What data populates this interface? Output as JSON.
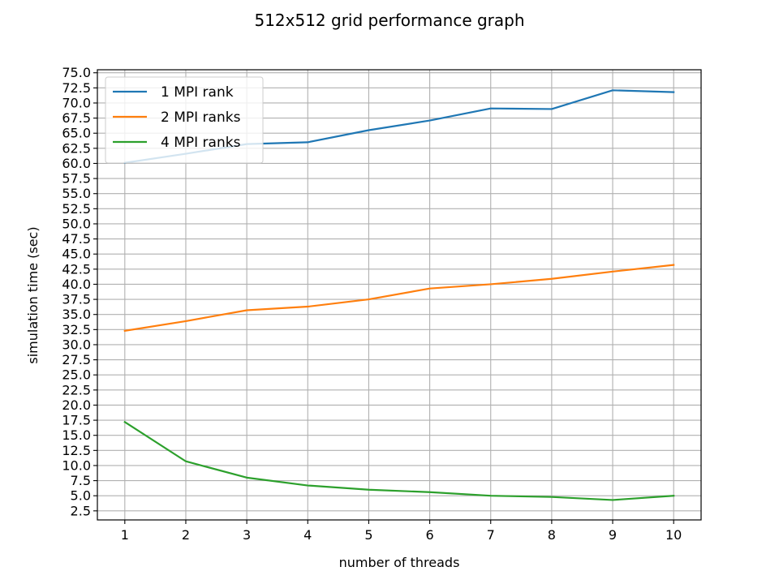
{
  "chart_data": {
    "type": "line",
    "title": "512x512 grid performance graph",
    "xlabel": "number of threads",
    "ylabel": "simulation time (sec)",
    "x": [
      1,
      2,
      3,
      4,
      5,
      6,
      7,
      8,
      9,
      10
    ],
    "xticks": [
      1,
      2,
      3,
      4,
      5,
      6,
      7,
      8,
      9,
      10
    ],
    "xlim": [
      0.55,
      10.45
    ],
    "ylim": [
      1.0,
      75.5
    ],
    "yticks": [
      2.5,
      5.0,
      7.5,
      10.0,
      12.5,
      15.0,
      17.5,
      20.0,
      22.5,
      25.0,
      27.5,
      30.0,
      32.5,
      35.0,
      37.5,
      40.0,
      42.5,
      45.0,
      47.5,
      50.0,
      52.5,
      55.0,
      57.5,
      60.0,
      62.5,
      65.0,
      67.5,
      70.0,
      72.5,
      75.0
    ],
    "ytick_labels": [
      "2.5",
      "5.0",
      "7.5",
      "10.0",
      "12.5",
      "15.0",
      "17.5",
      "20.0",
      "22.5",
      "25.0",
      "27.5",
      "30.0",
      "32.5",
      "35.0",
      "37.5",
      "40.0",
      "42.5",
      "45.0",
      "47.5",
      "50.0",
      "52.5",
      "55.0",
      "57.5",
      "60.0",
      "62.5",
      "65.0",
      "67.5",
      "70.0",
      "72.5",
      "75.0"
    ],
    "grid": true,
    "legend_position": "top-left",
    "series": [
      {
        "name": "1 MPI rank",
        "color": "#1f77b4",
        "values": [
          60.1,
          61.6,
          63.2,
          63.5,
          65.5,
          67.1,
          69.1,
          69.0,
          72.1,
          71.8
        ]
      },
      {
        "name": "2 MPI ranks",
        "color": "#ff7f0e",
        "values": [
          32.3,
          33.9,
          35.7,
          36.3,
          37.5,
          39.3,
          40.0,
          40.9,
          42.1,
          43.2
        ]
      },
      {
        "name": "4 MPI ranks",
        "color": "#2ca02c",
        "values": [
          17.2,
          10.7,
          8.0,
          6.7,
          6.0,
          5.6,
          5.0,
          4.8,
          4.3,
          5.0
        ]
      }
    ]
  }
}
